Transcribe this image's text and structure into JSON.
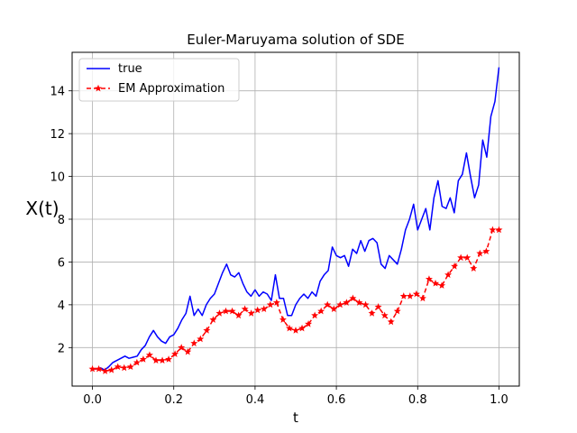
{
  "chart_data": {
    "type": "line",
    "title": "Euler-Maruyama solution of SDE",
    "xlabel": "t",
    "ylabel": "X(t)",
    "xlim": [
      -0.05,
      1.05
    ],
    "ylim": [
      0.2,
      15.8
    ],
    "xticks": [
      0.0,
      0.2,
      0.4,
      0.6,
      0.8,
      1.0
    ],
    "xtick_labels": [
      "0.0",
      "0.2",
      "0.4",
      "0.6",
      "0.8",
      "1.0"
    ],
    "yticks": [
      2,
      4,
      6,
      8,
      10,
      12,
      14
    ],
    "ytick_labels": [
      "2",
      "4",
      "6",
      "8",
      "10",
      "12",
      "14"
    ],
    "grid": true,
    "legend_position": "top-left",
    "series": [
      {
        "name": "true",
        "color": "#0000ff",
        "style": "solid",
        "marker": "none",
        "x": [
          0.0,
          0.01,
          0.02,
          0.03,
          0.04,
          0.05,
          0.06,
          0.07,
          0.08,
          0.09,
          0.1,
          0.11,
          0.12,
          0.13,
          0.14,
          0.15,
          0.16,
          0.17,
          0.18,
          0.19,
          0.2,
          0.21,
          0.22,
          0.23,
          0.24,
          0.25,
          0.26,
          0.27,
          0.28,
          0.29,
          0.3,
          0.31,
          0.32,
          0.33,
          0.34,
          0.35,
          0.36,
          0.37,
          0.38,
          0.39,
          0.4,
          0.41,
          0.42,
          0.43,
          0.44,
          0.45,
          0.46,
          0.47,
          0.48,
          0.49,
          0.5,
          0.51,
          0.52,
          0.53,
          0.54,
          0.55,
          0.56,
          0.57,
          0.58,
          0.59,
          0.6,
          0.61,
          0.62,
          0.63,
          0.64,
          0.65,
          0.66,
          0.67,
          0.68,
          0.69,
          0.7,
          0.71,
          0.72,
          0.73,
          0.74,
          0.75,
          0.76,
          0.77,
          0.78,
          0.79,
          0.8,
          0.81,
          0.82,
          0.83,
          0.84,
          0.85,
          0.86,
          0.87,
          0.88,
          0.89,
          0.9,
          0.91,
          0.92,
          0.93,
          0.94,
          0.95,
          0.96,
          0.97,
          0.98,
          0.99,
          1.0
        ],
        "y": [
          1.0,
          1.0,
          1.05,
          0.95,
          1.1,
          1.3,
          1.4,
          1.5,
          1.6,
          1.5,
          1.55,
          1.6,
          1.9,
          2.1,
          2.5,
          2.8,
          2.5,
          2.3,
          2.2,
          2.5,
          2.6,
          2.9,
          3.3,
          3.6,
          4.4,
          3.5,
          3.8,
          3.5,
          4.0,
          4.3,
          4.5,
          5.0,
          5.5,
          5.9,
          5.4,
          5.3,
          5.5,
          5.0,
          4.6,
          4.4,
          4.7,
          4.4,
          4.6,
          4.5,
          4.2,
          5.4,
          4.3,
          4.3,
          3.5,
          3.5,
          4.0,
          4.3,
          4.5,
          4.3,
          4.6,
          4.4,
          5.1,
          5.4,
          5.6,
          6.7,
          6.3,
          6.2,
          6.3,
          5.8,
          6.6,
          6.4,
          7.0,
          6.5,
          7.0,
          7.1,
          6.9,
          5.9,
          5.7,
          6.3,
          6.1,
          5.9,
          6.6,
          7.5,
          8.0,
          8.7,
          7.5,
          8.0,
          8.5,
          7.5,
          9.0,
          9.8,
          8.6,
          8.5,
          9.0,
          8.3,
          9.8,
          10.1,
          11.1,
          10.0,
          9.0,
          9.6,
          11.7,
          10.9,
          12.8,
          13.5,
          15.1
        ]
      },
      {
        "name": "EM Approximation",
        "color": "#ff0000",
        "style": "dashed",
        "marker": "star",
        "x": [
          0.0,
          0.0156,
          0.0312,
          0.0469,
          0.0625,
          0.0781,
          0.0938,
          0.1094,
          0.125,
          0.1406,
          0.1562,
          0.1719,
          0.1875,
          0.2031,
          0.2188,
          0.2344,
          0.25,
          0.2656,
          0.2812,
          0.2969,
          0.3125,
          0.3281,
          0.3438,
          0.3594,
          0.375,
          0.3906,
          0.4062,
          0.4219,
          0.4375,
          0.4531,
          0.4688,
          0.4844,
          0.5,
          0.5156,
          0.5312,
          0.5469,
          0.5625,
          0.5781,
          0.5938,
          0.6094,
          0.625,
          0.6406,
          0.6562,
          0.6719,
          0.6875,
          0.7031,
          0.7188,
          0.7344,
          0.75,
          0.7656,
          0.7812,
          0.7969,
          0.8125,
          0.8281,
          0.8438,
          0.8594,
          0.875,
          0.8906,
          0.9062,
          0.9219,
          0.9375,
          0.9531,
          0.9688,
          0.9844,
          1.0
        ],
        "y": [
          1.0,
          1.0,
          0.9,
          0.95,
          1.1,
          1.05,
          1.1,
          1.3,
          1.45,
          1.65,
          1.4,
          1.4,
          1.45,
          1.7,
          2.0,
          1.8,
          2.2,
          2.4,
          2.8,
          3.3,
          3.6,
          3.7,
          3.7,
          3.5,
          3.8,
          3.6,
          3.75,
          3.8,
          4.0,
          4.1,
          3.3,
          2.9,
          2.8,
          2.9,
          3.1,
          3.5,
          3.7,
          4.0,
          3.8,
          4.0,
          4.1,
          4.3,
          4.1,
          4.0,
          3.6,
          3.9,
          3.5,
          3.2,
          3.7,
          4.4,
          4.4,
          4.5,
          4.3,
          5.2,
          5.0,
          4.9,
          5.4,
          5.8,
          6.2,
          6.2,
          5.7,
          6.4,
          6.5,
          7.5,
          7.5
        ]
      }
    ]
  }
}
